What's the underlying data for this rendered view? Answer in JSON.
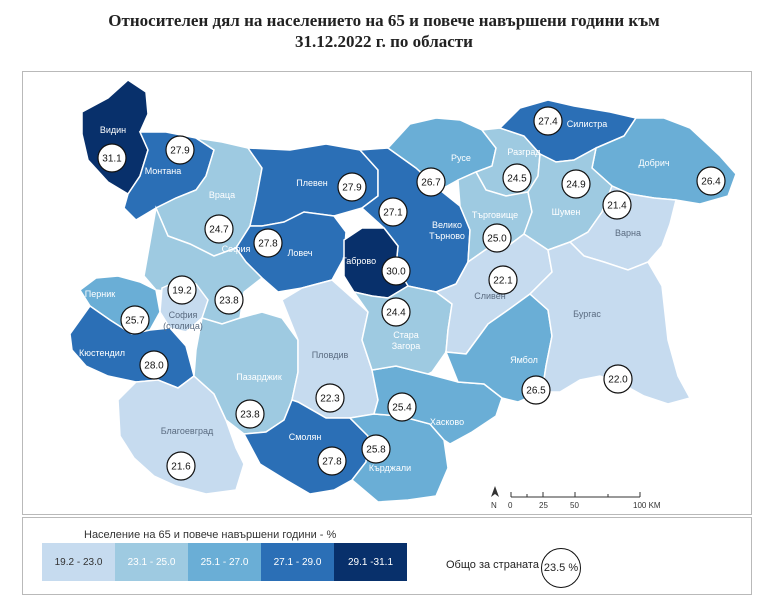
{
  "title_line1": "Относителен дял на населението на 65 и повече навършени години към",
  "title_line2": "31.12.2022 г. по области",
  "legend": {
    "title": "Население на 65 и повече навършени години - %",
    "classes": [
      {
        "label": "19.2 - 23.0",
        "color": "#c6dbef",
        "text": "#333333"
      },
      {
        "label": "23.1 - 25.0",
        "color": "#9ecae1",
        "text": "#ffffff"
      },
      {
        "label": "25.1 - 27.0",
        "color": "#6aaed6",
        "text": "#ffffff"
      },
      {
        "label": "27.1 - 29.0",
        "color": "#2b6fb6",
        "text": "#ffffff"
      },
      {
        "label": "29.1 -31.1",
        "color": "#08306b",
        "text": "#ffffff"
      }
    ]
  },
  "total": {
    "label": "Общо за страната",
    "value": "23.5 %"
  },
  "scale": {
    "ticks": [
      "0",
      "25",
      "50",
      "100 KM"
    ],
    "north": "N"
  },
  "regions": [
    {
      "name": "Видин",
      "value": "31.1",
      "class": 4
    },
    {
      "name": "Монтана",
      "value": "27.9",
      "class": 3
    },
    {
      "name": "Враца",
      "value": "24.7",
      "class": 1
    },
    {
      "name": "Плевен",
      "value": "27.9",
      "class": 3
    },
    {
      "name": "Ловеч",
      "value": "27.8",
      "class": 3
    },
    {
      "name": "Велико Търново",
      "value": "27.1",
      "class": 3
    },
    {
      "name": "Габрово",
      "value": "30.0",
      "class": 4
    },
    {
      "name": "Русе",
      "value": "26.7",
      "class": 2
    },
    {
      "name": "Разград",
      "value": "24.5",
      "class": 1
    },
    {
      "name": "Силистра",
      "value": "27.4",
      "class": 3
    },
    {
      "name": "Добрич",
      "value": "26.4",
      "class": 2
    },
    {
      "name": "Търговище",
      "value": "25.0",
      "class": 1
    },
    {
      "name": "Шумен",
      "value": "24.9",
      "class": 1
    },
    {
      "name": "Варна",
      "value": "21.4",
      "class": 0
    },
    {
      "name": "София",
      "value": "23.8",
      "class": 1
    },
    {
      "name": "София (столица)",
      "value": "19.2",
      "class": 0
    },
    {
      "name": "Перник",
      "value": "25.7",
      "class": 2
    },
    {
      "name": "Кюстендил",
      "value": "28.0",
      "class": 3
    },
    {
      "name": "Благоевград",
      "value": "21.6",
      "class": 0
    },
    {
      "name": "Пазарджик",
      "value": "23.8",
      "class": 1
    },
    {
      "name": "Пловдив",
      "value": "22.3",
      "class": 0
    },
    {
      "name": "Смолян",
      "value": "27.8",
      "class": 3
    },
    {
      "name": "Кърджали",
      "value": "25.8",
      "class": 2
    },
    {
      "name": "Хасково",
      "value": "25.4",
      "class": 2
    },
    {
      "name": "Стара Загора",
      "value": "24.4",
      "class": 1
    },
    {
      "name": "Сливен",
      "value": "22.1",
      "class": 0
    },
    {
      "name": "Ямбол",
      "value": "26.5",
      "class": 2
    },
    {
      "name": "Бургас",
      "value": "22.0",
      "class": 0
    }
  ]
}
